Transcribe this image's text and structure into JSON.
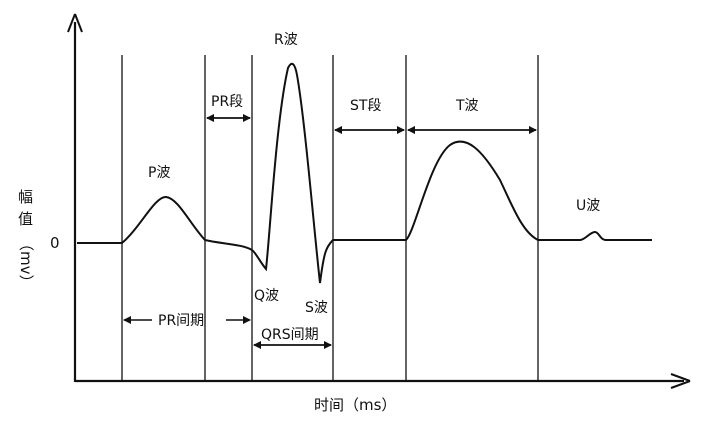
{
  "axes": {
    "y_label_chars": [
      "幅",
      "值"
    ],
    "y_label_unit": "（mv）",
    "zero_label": "0",
    "x_label": "时间（ms）"
  },
  "waves": {
    "p": "P波",
    "q": "Q波",
    "r": "R波",
    "s": "S波",
    "t": "T波",
    "u": "U波"
  },
  "intervals": {
    "pr_segment": "PR段",
    "st_segment": "ST段",
    "pr_interval": "PR间期",
    "qrs_interval": "QRS间期"
  }
}
